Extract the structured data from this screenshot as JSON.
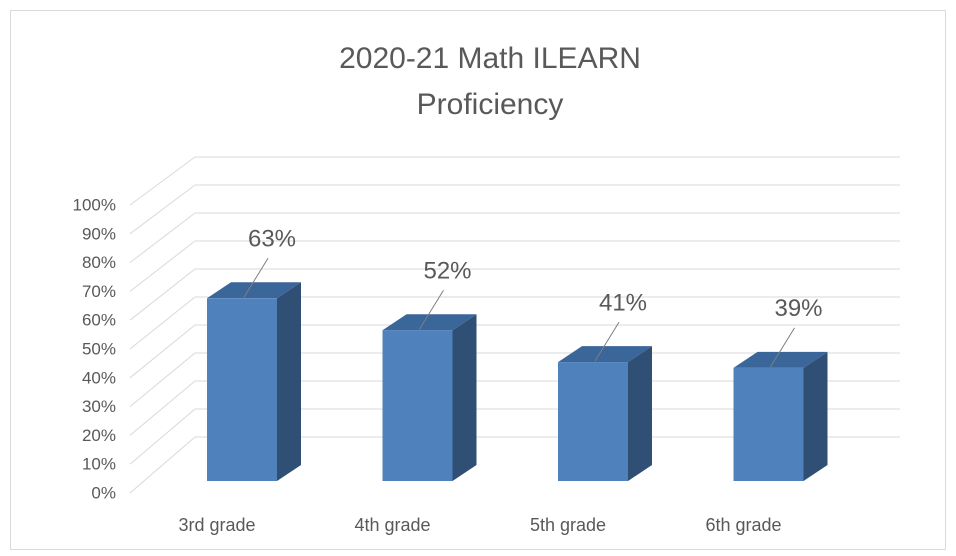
{
  "chart_data": {
    "type": "bar3d",
    "title": "2020-21 Math ILEARN Proficiency",
    "categories": [
      "3rd grade",
      "4th grade",
      "5th grade",
      "6th grade"
    ],
    "values": [
      63,
      52,
      41,
      39
    ],
    "value_labels": [
      "63%",
      "52%",
      "41%",
      "39%"
    ],
    "color": "#4f81bd",
    "ylim": [
      0,
      100
    ],
    "yticks": [
      {
        "value": 0,
        "label": "0%"
      },
      {
        "value": 10,
        "label": "10%"
      },
      {
        "value": 20,
        "label": "20%"
      },
      {
        "value": 30,
        "label": "30%"
      },
      {
        "value": 40,
        "label": "40%"
      },
      {
        "value": 50,
        "label": "50%"
      },
      {
        "value": 60,
        "label": "60%"
      },
      {
        "value": 70,
        "label": "70%"
      },
      {
        "value": 80,
        "label": "80%"
      },
      {
        "value": 90,
        "label": "90%"
      },
      {
        "value": 100,
        "label": "100%"
      }
    ],
    "grid": true
  }
}
